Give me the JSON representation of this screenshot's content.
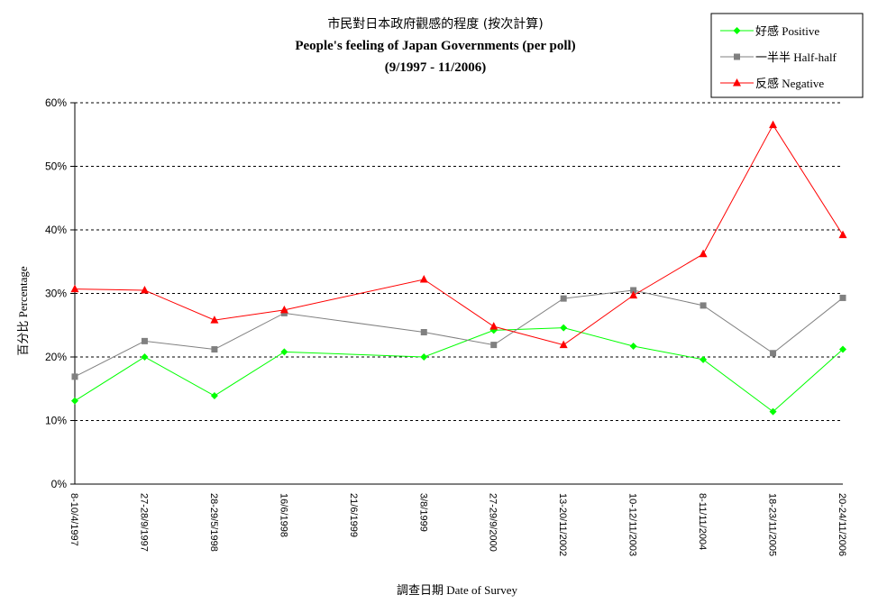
{
  "chart_data": {
    "type": "line",
    "title": "市民對日本政府觀感的程度 (按次計算)",
    "subtitle": "People's feeling of Japan Governments (per poll)",
    "period": "(9/1997 - 11/2006)",
    "xlabel": "調查日期 Date of Survey",
    "ylabel": "百分比 Percentage",
    "ylim": [
      0,
      60
    ],
    "yticks": [
      "0%",
      "10%",
      "20%",
      "30%",
      "40%",
      "50%",
      "60%"
    ],
    "grid": true,
    "legend_position": "top-right",
    "categories": [
      "8-10/4/1997",
      "27-28/9/1997",
      "28-29/5/1998",
      "16/6/1998",
      "21/6/1999",
      "3/8/1999",
      "27-29/9/2000",
      "13-20/11/2002",
      "10-12/11/2003",
      "8-11/11/2004",
      "18-23/11/2005",
      "20-24/11/2006"
    ],
    "series": [
      {
        "name": "好感 Positive",
        "color": "#00ff00",
        "marker": "diamond",
        "values": [
          13.1,
          20.0,
          13.9,
          20.8,
          null,
          20.0,
          24.2,
          24.6,
          21.7,
          19.6,
          11.4,
          21.2
        ]
      },
      {
        "name": "一半半 Half-half",
        "color": "#808080",
        "marker": "square",
        "values": [
          16.9,
          22.5,
          21.2,
          26.9,
          null,
          23.9,
          21.9,
          29.2,
          30.5,
          28.1,
          20.6,
          29.3
        ]
      },
      {
        "name": "反感 Negative",
        "color": "#ff0000",
        "marker": "triangle",
        "values": [
          30.7,
          30.5,
          25.8,
          27.4,
          null,
          32.2,
          24.8,
          21.9,
          29.7,
          36.2,
          56.5,
          39.2
        ]
      }
    ]
  }
}
